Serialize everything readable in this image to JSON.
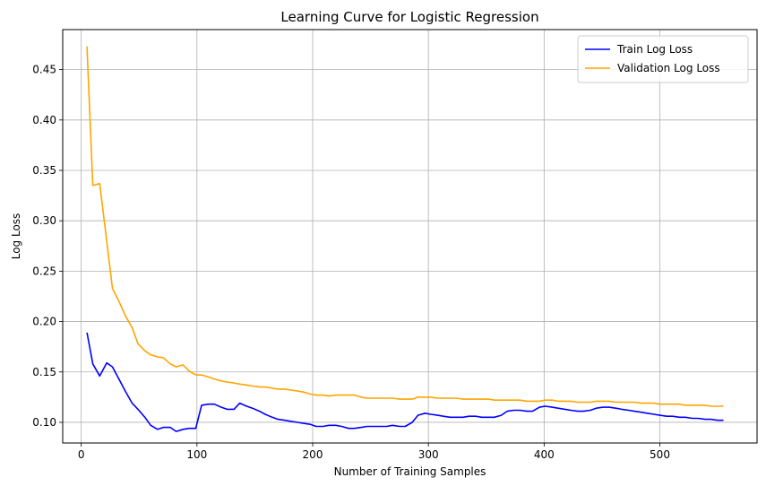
{
  "chart_data": {
    "type": "line",
    "title": "Learning Curve for Logistic Regression",
    "xlabel": "Number of Training Samples",
    "ylabel": "Log Loss",
    "xlim": [
      -16,
      584
    ],
    "ylim": [
      0.0795,
      0.4897
    ],
    "xticks": [
      0,
      100,
      200,
      300,
      400,
      500
    ],
    "yticks": [
      0.1,
      0.15,
      0.2,
      0.25,
      0.3,
      0.35,
      0.4,
      0.45
    ],
    "grid": true,
    "legend_position": "top-right",
    "series": [
      {
        "name": "Train Log Loss",
        "color": "#0000ff",
        "x": [
          5,
          10,
          16,
          22,
          27,
          33,
          38,
          44,
          49,
          55,
          60,
          66,
          71,
          77,
          82,
          88,
          93,
          99,
          104,
          110,
          115,
          121,
          126,
          132,
          137,
          143,
          148,
          154,
          159,
          165,
          170,
          176,
          181,
          187,
          192,
          198,
          203,
          209,
          214,
          220,
          225,
          231,
          236,
          242,
          247,
          253,
          258,
          264,
          269,
          275,
          280,
          286,
          291,
          297,
          302,
          308,
          313,
          319,
          324,
          330,
          335,
          341,
          346,
          352,
          357,
          363,
          368,
          374,
          379,
          385,
          390,
          396,
          401,
          407,
          412,
          418,
          423,
          429,
          434,
          440,
          445,
          451,
          456,
          462,
          467,
          473,
          478,
          484,
          489,
          495,
          500,
          506,
          511,
          517,
          522,
          528,
          533,
          539,
          544,
          550,
          555
        ],
        "y": [
          0.189,
          0.158,
          0.146,
          0.159,
          0.155,
          0.142,
          0.131,
          0.119,
          0.113,
          0.105,
          0.097,
          0.093,
          0.095,
          0.095,
          0.091,
          0.093,
          0.094,
          0.094,
          0.117,
          0.118,
          0.118,
          0.115,
          0.113,
          0.113,
          0.119,
          0.116,
          0.114,
          0.111,
          0.108,
          0.105,
          0.103,
          0.102,
          0.101,
          0.1,
          0.099,
          0.098,
          0.096,
          0.096,
          0.097,
          0.097,
          0.096,
          0.094,
          0.094,
          0.095,
          0.096,
          0.096,
          0.096,
          0.096,
          0.097,
          0.096,
          0.096,
          0.1,
          0.107,
          0.109,
          0.108,
          0.107,
          0.106,
          0.105,
          0.105,
          0.105,
          0.106,
          0.106,
          0.105,
          0.105,
          0.105,
          0.107,
          0.111,
          0.112,
          0.112,
          0.111,
          0.111,
          0.115,
          0.116,
          0.115,
          0.114,
          0.113,
          0.112,
          0.111,
          0.111,
          0.112,
          0.114,
          0.115,
          0.115,
          0.114,
          0.113,
          0.112,
          0.111,
          0.11,
          0.109,
          0.108,
          0.107,
          0.106,
          0.106,
          0.105,
          0.105,
          0.104,
          0.104,
          0.103,
          0.103,
          0.102,
          0.102
        ]
      },
      {
        "name": "Validation Log Loss",
        "color": "#ffa500",
        "x": [
          5,
          10,
          16,
          22,
          27,
          33,
          38,
          44,
          49,
          55,
          60,
          66,
          71,
          77,
          82,
          88,
          93,
          99,
          104,
          110,
          115,
          121,
          126,
          132,
          137,
          143,
          148,
          154,
          159,
          165,
          170,
          176,
          181,
          187,
          192,
          198,
          203,
          209,
          214,
          220,
          225,
          231,
          236,
          242,
          247,
          253,
          258,
          264,
          269,
          275,
          280,
          286,
          291,
          297,
          302,
          308,
          313,
          319,
          324,
          330,
          335,
          341,
          346,
          352,
          357,
          363,
          368,
          374,
          379,
          385,
          390,
          396,
          401,
          407,
          412,
          418,
          423,
          429,
          434,
          440,
          445,
          451,
          456,
          462,
          467,
          473,
          478,
          484,
          489,
          495,
          500,
          506,
          511,
          517,
          522,
          528,
          533,
          539,
          544,
          550,
          555
        ],
        "y": [
          0.473,
          0.335,
          0.337,
          0.28,
          0.233,
          0.219,
          0.206,
          0.194,
          0.178,
          0.171,
          0.167,
          0.165,
          0.164,
          0.158,
          0.155,
          0.157,
          0.151,
          0.147,
          0.147,
          0.145,
          0.143,
          0.141,
          0.14,
          0.139,
          0.138,
          0.137,
          0.136,
          0.135,
          0.135,
          0.134,
          0.133,
          0.133,
          0.132,
          0.131,
          0.13,
          0.128,
          0.127,
          0.127,
          0.126,
          0.127,
          0.127,
          0.127,
          0.127,
          0.125,
          0.124,
          0.124,
          0.124,
          0.124,
          0.124,
          0.123,
          0.123,
          0.123,
          0.125,
          0.125,
          0.125,
          0.124,
          0.124,
          0.124,
          0.124,
          0.123,
          0.123,
          0.123,
          0.123,
          0.123,
          0.122,
          0.122,
          0.122,
          0.122,
          0.122,
          0.121,
          0.121,
          0.121,
          0.122,
          0.122,
          0.121,
          0.121,
          0.121,
          0.12,
          0.12,
          0.12,
          0.121,
          0.121,
          0.121,
          0.12,
          0.12,
          0.12,
          0.12,
          0.119,
          0.119,
          0.119,
          0.118,
          0.118,
          0.118,
          0.118,
          0.117,
          0.117,
          0.117,
          0.117,
          0.116,
          0.116,
          0.116
        ]
      }
    ]
  }
}
